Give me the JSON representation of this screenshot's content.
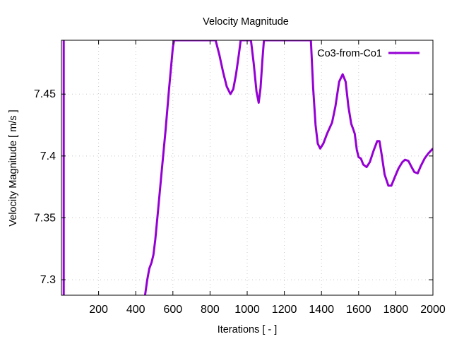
{
  "chart_data": {
    "type": "line",
    "title": "Velocity Magnitude",
    "xlabel": "Iterations [ - ]",
    "ylabel": "Velocity Magnitude [ m/s ]",
    "xlim": [
      0,
      2000
    ],
    "ylim": [
      7.2875,
      7.4935
    ],
    "grid": true,
    "legend_position": "top-right",
    "x_ticks": [
      200,
      400,
      600,
      800,
      1000,
      1200,
      1400,
      1600,
      1800,
      2000
    ],
    "x_tick_labels": [
      "200",
      "400",
      "600",
      "800",
      "1000",
      "1200",
      "1400",
      "1600",
      "1800",
      "2000"
    ],
    "y_ticks": [
      7.3,
      7.35,
      7.4,
      7.45
    ],
    "y_tick_labels": [
      "7.3",
      "7.35",
      "7.4",
      "7.45"
    ],
    "series": [
      {
        "name": "Co3-from-Co1",
        "color": "#9400d3",
        "x": [
          12,
          12,
          12,
          450,
          462,
          473,
          485,
          495,
          505,
          520,
          540,
          560,
          580,
          600,
          607,
          830,
          850,
          870,
          890,
          910,
          925,
          940,
          955,
          965,
          1020,
          1035,
          1050,
          1062,
          1072,
          1082,
          1090,
          1343,
          1355,
          1368,
          1380,
          1393,
          1410,
          1430,
          1457,
          1475,
          1495,
          1514,
          1530,
          1545,
          1560,
          1570,
          1579,
          1590,
          1600,
          1612,
          1625,
          1643,
          1660,
          1680,
          1700,
          1712,
          1725,
          1740,
          1760,
          1776,
          1795,
          1815,
          1835,
          1850,
          1868,
          1885,
          1900,
          1918,
          1935,
          1955,
          1975,
          2000
        ],
        "y": [
          7.4935,
          7.2875,
          null,
          7.2875,
          7.3,
          7.309,
          7.314,
          7.32,
          7.332,
          7.356,
          7.388,
          7.42,
          7.455,
          7.488,
          7.4935,
          7.4935,
          7.482,
          7.468,
          7.456,
          7.45,
          7.454,
          7.466,
          7.482,
          7.4935,
          7.4935,
          7.475,
          7.452,
          7.443,
          7.455,
          7.478,
          7.4935,
          7.4935,
          7.455,
          7.425,
          7.41,
          7.406,
          7.41,
          7.418,
          7.427,
          7.44,
          7.46,
          7.466,
          7.46,
          7.44,
          7.426,
          7.422,
          7.418,
          7.405,
          7.399,
          7.398,
          7.393,
          7.391,
          7.395,
          7.404,
          7.412,
          7.412,
          7.4,
          7.385,
          7.376,
          7.376,
          7.383,
          7.39,
          7.395,
          7.397,
          7.396,
          7.391,
          7.387,
          7.386,
          7.392,
          7.398,
          7.402,
          7.406
        ]
      }
    ]
  }
}
